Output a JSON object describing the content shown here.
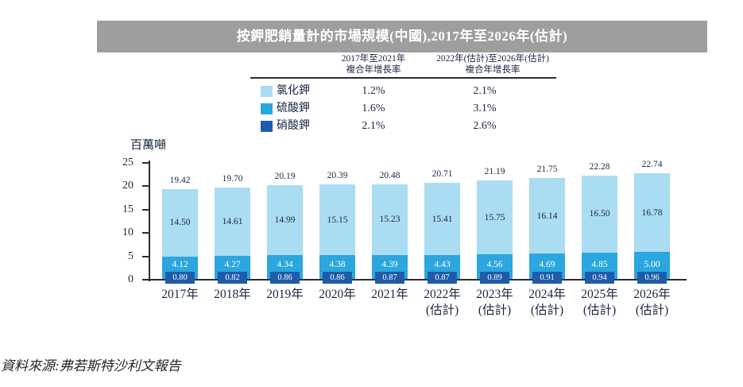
{
  "title": "按鉀肥銷量計的市場規模(中國),2017年至2026年(估計)",
  "colors": {
    "title_bar_bg": "#9e9e9e",
    "title_text": "#ffffff",
    "axis": "#2b2b34",
    "label_text": "#1b2642",
    "series_kcl": "#aadcf2",
    "series_k2so4": "#2ba6de",
    "series_kno3": "#1e5ca9"
  },
  "cagr_table": {
    "columns": [
      {
        "header": "2017年至2021年\n複合年增長率"
      },
      {
        "header": "2022年(估計)至2026年(估計)\n複合年增長率"
      }
    ],
    "rows": [
      {
        "label": "氯化鉀",
        "swatch": "#aadcf2",
        "cagr_2017_2021": "1.2%",
        "cagr_2022_2026": "2.1%"
      },
      {
        "label": "硫酸鉀",
        "swatch": "#2ba6de",
        "cagr_2017_2021": "1.6%",
        "cagr_2022_2026": "3.1%"
      },
      {
        "label": "硝酸鉀",
        "swatch": "#1e5ca9",
        "cagr_2017_2021": "2.1%",
        "cagr_2022_2026": "2.6%"
      }
    ]
  },
  "chart_data": {
    "type": "bar",
    "stacked": true,
    "title": "按鉀肥銷量計的市場規模(中國),2017年至2026年(估計)",
    "unit_label": "百萬噸",
    "ylabel": "百萬噸",
    "xlabel": "",
    "ylim": [
      0,
      25
    ],
    "yticks": [
      0,
      5,
      10,
      15,
      20,
      25
    ],
    "grid": false,
    "legend_position": "top-table",
    "categories": [
      "2017年",
      "2018年",
      "2019年",
      "2020年",
      "2021年",
      "2022年\n(估計)",
      "2023年\n(估計)",
      "2024年\n(估計)",
      "2025年\n(估計)",
      "2026年\n(估計)"
    ],
    "series": [
      {
        "name": "氯化鉀",
        "color": "#aadcf2",
        "values": [
          14.5,
          14.61,
          14.99,
          15.15,
          15.23,
          15.41,
          15.75,
          16.14,
          16.5,
          16.78
        ]
      },
      {
        "name": "硫酸鉀",
        "color": "#2ba6de",
        "values": [
          4.12,
          4.27,
          4.34,
          4.38,
          4.39,
          4.43,
          4.56,
          4.69,
          4.85,
          5.0
        ]
      },
      {
        "name": "硝酸鉀",
        "color": "#1e5ca9",
        "values": [
          0.8,
          0.82,
          0.86,
          0.86,
          0.87,
          0.87,
          0.89,
          0.91,
          0.94,
          0.96
        ]
      }
    ],
    "totals": [
      19.42,
      19.7,
      20.19,
      20.39,
      20.48,
      20.71,
      21.19,
      21.75,
      22.28,
      22.74
    ]
  },
  "source": "資料來源:弗若斯特沙利文報告"
}
